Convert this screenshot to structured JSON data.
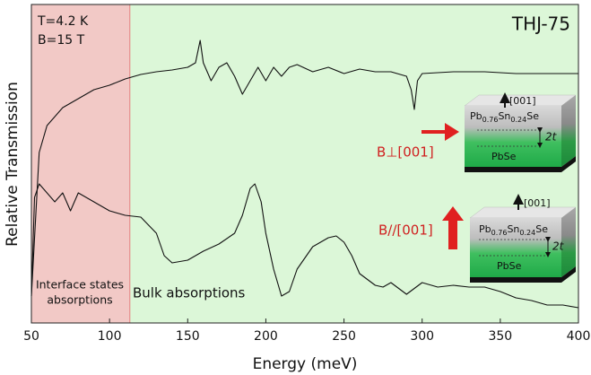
{
  "chart_data": {
    "type": "line",
    "xlabel": "Energy (meV)",
    "ylabel": "Relative Transmission",
    "xlim": [
      50,
      400
    ],
    "xticks": [
      50,
      100,
      150,
      200,
      250,
      300,
      350,
      400
    ],
    "ylim": [
      0,
      355
    ],
    "regions": [
      {
        "from": 50,
        "to": 113,
        "color": "#f2c9c6"
      },
      {
        "from": 113,
        "to": 400,
        "color": "#dcf7d8"
      }
    ],
    "series": [
      {
        "color": "#111111",
        "x": [
          50,
          55,
          60,
          70,
          80,
          90,
          100,
          110,
          120,
          130,
          140,
          150,
          155,
          158,
          160,
          165,
          170,
          175,
          180,
          185,
          190,
          195,
          200,
          205,
          210,
          215,
          220,
          230,
          240,
          250,
          260,
          270,
          280,
          290,
          293,
          295,
          297,
          300,
          320,
          340,
          360,
          380,
          400
        ],
        "values": [
          30,
          190,
          220,
          240,
          250,
          260,
          265,
          272,
          277,
          280,
          282,
          285,
          290,
          315,
          290,
          270,
          285,
          290,
          275,
          255,
          270,
          285,
          270,
          285,
          275,
          285,
          288,
          280,
          285,
          278,
          283,
          280,
          280,
          275,
          260,
          238,
          270,
          278,
          280,
          280,
          278,
          278,
          278
        ]
      },
      {
        "color": "#111111",
        "x": [
          50,
          52,
          55,
          60,
          65,
          70,
          75,
          80,
          90,
          100,
          110,
          120,
          130,
          135,
          140,
          150,
          160,
          170,
          180,
          185,
          190,
          193,
          197,
          200,
          205,
          210,
          215,
          220,
          230,
          240,
          245,
          250,
          255,
          260,
          270,
          275,
          280,
          290,
          300,
          310,
          320,
          330,
          340,
          350,
          360,
          370,
          380,
          390,
          400
        ],
        "values": [
          30,
          140,
          155,
          145,
          135,
          145,
          125,
          145,
          135,
          125,
          120,
          118,
          100,
          75,
          67,
          70,
          80,
          88,
          100,
          120,
          150,
          155,
          135,
          100,
          60,
          30,
          35,
          60,
          85,
          95,
          97,
          90,
          75,
          55,
          42,
          40,
          45,
          32,
          45,
          40,
          42,
          40,
          40,
          35,
          28,
          25,
          20,
          20,
          17
        ]
      }
    ],
    "annotations": {
      "temperature": "T=4.2 K",
      "field": "B=15 T",
      "sample": "THJ-75",
      "interface_1": "Interface states",
      "interface_2": "absorptions",
      "bulk": "Bulk absorptions"
    },
    "insets": [
      {
        "field_label": "B⊥[001]",
        "direction": "[001]",
        "top_layer": [
          "Pb",
          "0.76",
          "Sn",
          "0.24",
          "Se"
        ],
        "thickness": "2t",
        "bottom_layer": "PbSe"
      },
      {
        "field_label": "B//[001]",
        "direction": "[001]",
        "top_layer": [
          "Pb",
          "0.76",
          "Sn",
          "0.24",
          "Se"
        ],
        "thickness": "2t",
        "bottom_layer": "PbSe"
      }
    ]
  }
}
